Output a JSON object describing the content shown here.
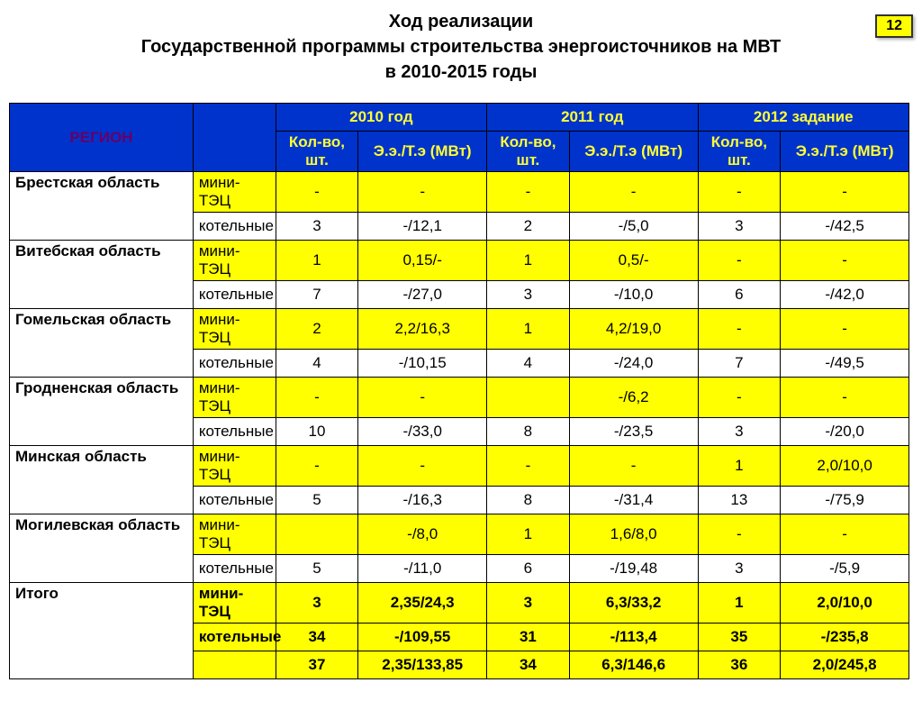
{
  "page_number": "12",
  "title1": "Ход реализации",
  "title2": "Государственной программы строительства энергоисточников на МВТ",
  "title3": "в 2010-2015 годы",
  "headers": {
    "region": "РЕГИОН",
    "y2010": "2010 год",
    "y2011": "2011 год",
    "y2012": "2012 задание",
    "qty": "Кол-во, шт.",
    "pwr": "Э.э./Т.э (МВт)"
  },
  "types": {
    "mini": "мини-ТЭЦ",
    "kot": "котельные"
  },
  "regions": [
    {
      "name": "Брестская область",
      "mini": [
        "-",
        "-",
        "-",
        "-",
        "-",
        "-"
      ],
      "kot": [
        "3",
        "-/12,1",
        "2",
        "-/5,0",
        "3",
        "-/42,5"
      ]
    },
    {
      "name": "Витебская область",
      "mini": [
        "1",
        "0,15/-",
        "1",
        "0,5/-",
        "-",
        "-"
      ],
      "kot": [
        "7",
        "-/27,0",
        "3",
        "-/10,0",
        "6",
        "-/42,0"
      ]
    },
    {
      "name": "Гомельская область",
      "mini": [
        "2",
        "2,2/16,3",
        "1",
        "4,2/19,0",
        "-",
        "-"
      ],
      "kot": [
        "4",
        "-/10,15",
        "4",
        "-/24,0",
        "7",
        "-/49,5"
      ]
    },
    {
      "name": "Гродненская область",
      "mini": [
        "-",
        "-",
        "",
        "-/6,2",
        "-",
        "-"
      ],
      "kot": [
        "10",
        "-/33,0",
        "8",
        "-/23,5",
        "3",
        "-/20,0"
      ]
    },
    {
      "name": "Минская область",
      "mini": [
        "-",
        "-",
        "-",
        "-",
        "1",
        "2,0/10,0"
      ],
      "kot": [
        "5",
        "-/16,3",
        "8",
        "-/31,4",
        "13",
        "-/75,9"
      ]
    },
    {
      "name": "Могилевская область",
      "mini": [
        "",
        "-/8,0",
        "1",
        "1,6/8,0",
        "-",
        "-"
      ],
      "kot": [
        "5",
        "-/11,0",
        "6",
        "-/19,48",
        "3",
        "-/5,9"
      ]
    }
  ],
  "total": {
    "label": "Итого",
    "mini": [
      "3",
      "2,35/24,3",
      "3",
      "6,3/33,2",
      "1",
      "2,0/10,0"
    ],
    "kot": [
      "34",
      "-/109,55",
      "31",
      "-/113,4",
      "35",
      "-/235,8"
    ],
    "sum": [
      "37",
      "2,35/133,85",
      "34",
      "6,3/146,6",
      "36",
      "2,0/245,8"
    ]
  },
  "style": {
    "header_bg": "#0033cc",
    "header_fg": "#ffff33",
    "highlight": "#ffff00",
    "region_color": "#660066"
  }
}
